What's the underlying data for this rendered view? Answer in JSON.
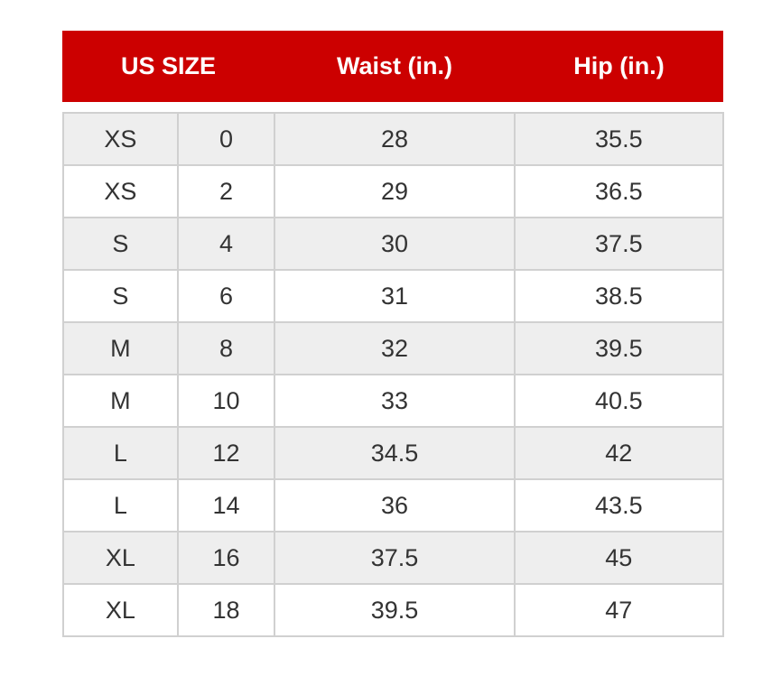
{
  "header": {
    "size": "US SIZE",
    "waist": "Waist (in.)",
    "hip": "Hip (in.)",
    "color": "#cc0000"
  },
  "rows": [
    {
      "letter": "XS",
      "number": "0",
      "waist": "28",
      "hip": "35.5"
    },
    {
      "letter": "XS",
      "number": "2",
      "waist": "29",
      "hip": "36.5"
    },
    {
      "letter": "S",
      "number": "4",
      "waist": "30",
      "hip": "37.5"
    },
    {
      "letter": "S",
      "number": "6",
      "waist": "31",
      "hip": "38.5"
    },
    {
      "letter": "M",
      "number": "8",
      "waist": "32",
      "hip": "39.5"
    },
    {
      "letter": "M",
      "number": "10",
      "waist": "33",
      "hip": "40.5"
    },
    {
      "letter": "L",
      "number": "12",
      "waist": "34.5",
      "hip": "42"
    },
    {
      "letter": "L",
      "number": "14",
      "waist": "36",
      "hip": "43.5"
    },
    {
      "letter": "XL",
      "number": "16",
      "waist": "37.5",
      "hip": "45"
    },
    {
      "letter": "XL",
      "number": "18",
      "waist": "39.5",
      "hip": "47"
    }
  ]
}
